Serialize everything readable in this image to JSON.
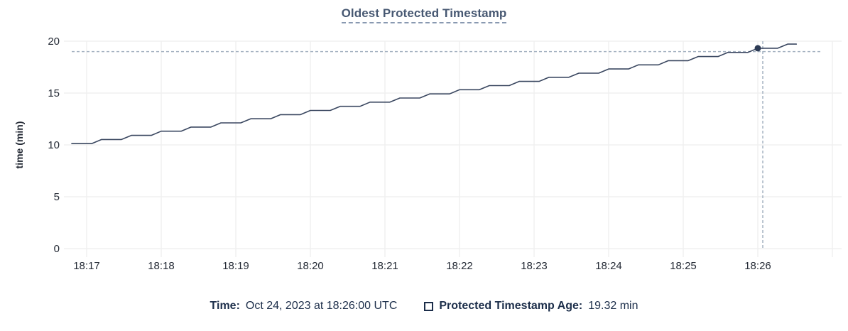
{
  "title": "Oldest Protected Timestamp",
  "legend": {
    "time_label": "Time:",
    "time_value": "Oct 24, 2023 at 18:26:00 UTC",
    "series_checkbox_state": "unchecked",
    "series_label": "Protected Timestamp Age:",
    "series_value": "19.32 min"
  },
  "colors": {
    "title_text": "#475872",
    "legend_text": "#1c2e4a",
    "series_line": "#3a4760",
    "hover_dot": "#2c3a54",
    "crosshair": "#a6b3c2",
    "gridline": "#f0f0f0",
    "tick_text": "#242a35"
  },
  "chart_data": {
    "type": "line",
    "title": "Oldest Protected Timestamp",
    "xlabel": "",
    "ylabel": "time (min)",
    "ylim": [
      0,
      20
    ],
    "y_ticks": [
      0,
      5,
      10,
      15,
      20
    ],
    "x_tick_labels": [
      "18:17",
      "18:18",
      "18:19",
      "18:20",
      "18:21",
      "18:22",
      "18:23",
      "18:24",
      "18:25",
      "18:26",
      ""
    ],
    "x_tick_seconds": [
      0,
      60,
      120,
      180,
      240,
      300,
      360,
      420,
      480,
      540,
      600
    ],
    "grid": true,
    "legend_position": "bottom",
    "series": [
      {
        "name": "Protected Timestamp Age",
        "unit": "min",
        "points_t_seconds_value_min": [
          [
            -12,
            10.12
          ],
          [
            4,
            10.12
          ],
          [
            12,
            10.52
          ],
          [
            28,
            10.52
          ],
          [
            36,
            10.92
          ],
          [
            52,
            10.92
          ],
          [
            60,
            11.32
          ],
          [
            76,
            11.32
          ],
          [
            84,
            11.72
          ],
          [
            100,
            11.72
          ],
          [
            108,
            12.12
          ],
          [
            124,
            12.12
          ],
          [
            132,
            12.52
          ],
          [
            148,
            12.52
          ],
          [
            156,
            12.92
          ],
          [
            172,
            12.92
          ],
          [
            180,
            13.32
          ],
          [
            196,
            13.32
          ],
          [
            204,
            13.72
          ],
          [
            220,
            13.72
          ],
          [
            228,
            14.12
          ],
          [
            244,
            14.12
          ],
          [
            252,
            14.52
          ],
          [
            268,
            14.52
          ],
          [
            276,
            14.92
          ],
          [
            292,
            14.92
          ],
          [
            300,
            15.32
          ],
          [
            316,
            15.32
          ],
          [
            324,
            15.72
          ],
          [
            340,
            15.72
          ],
          [
            348,
            16.12
          ],
          [
            364,
            16.12
          ],
          [
            372,
            16.52
          ],
          [
            388,
            16.52
          ],
          [
            396,
            16.92
          ],
          [
            412,
            16.92
          ],
          [
            420,
            17.32
          ],
          [
            436,
            17.32
          ],
          [
            444,
            17.72
          ],
          [
            460,
            17.72
          ],
          [
            468,
            18.12
          ],
          [
            484,
            18.12
          ],
          [
            492,
            18.52
          ],
          [
            508,
            18.52
          ],
          [
            516,
            18.92
          ],
          [
            532,
            18.92
          ],
          [
            540,
            19.32
          ],
          [
            556,
            19.32
          ],
          [
            564,
            19.72
          ],
          [
            571,
            19.72
          ]
        ]
      }
    ],
    "hover_point": {
      "t_seconds": 540,
      "x_label": "18:26:00",
      "value_min": 19.32
    },
    "crosshair": {
      "t_seconds": 544,
      "value_min": 19.0
    }
  }
}
